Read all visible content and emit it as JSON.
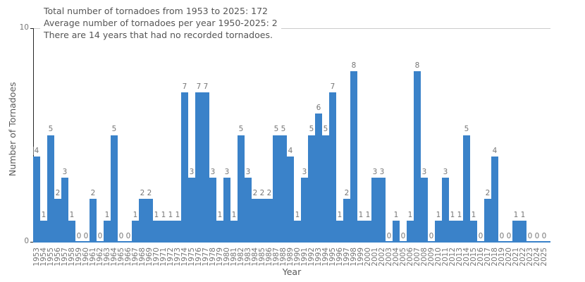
{
  "chart_data": {
    "type": "bar",
    "title_lines": [
      "Total number of tornadoes from 1953 to 2025: 172",
      "Average number of tornadoes per year 1950-2025: 2",
      "There are 14 years that had no recorded tornadoes."
    ],
    "xlabel": "Year",
    "ylabel": "Number of Tornadoes",
    "ylim": [
      0,
      10
    ],
    "yticks": [
      0,
      10
    ],
    "grid_top_line": true,
    "legend": "none",
    "bar_color": "#3a82c9",
    "axis_color": "#262626",
    "tick_label_color": "#777777",
    "title_color": "#555555",
    "years": [
      "1953",
      "1954",
      "1955",
      "1956",
      "1957",
      "1958",
      "1959",
      "1960",
      "1961",
      "1962",
      "1963",
      "1964",
      "1965",
      "1966",
      "1967",
      "1968",
      "1969",
      "1970",
      "1971",
      "1972",
      "1973",
      "1974",
      "1975",
      "1976",
      "1977",
      "1978",
      "1979",
      "1980",
      "1981",
      "1982",
      "1983",
      "1984",
      "1985",
      "1986",
      "1987",
      "1988",
      "1989",
      "1990",
      "1991",
      "1992",
      "1993",
      "1994",
      "1995",
      "1996",
      "1997",
      "1998",
      "1999",
      "2000",
      "2001",
      "2002",
      "2003",
      "2004",
      "2005",
      "2006",
      "2007",
      "2008",
      "2009",
      "2010",
      "2011",
      "2012",
      "2013",
      "2014",
      "2015",
      "2016",
      "2017",
      "2018",
      "2019",
      "2020",
      "2021",
      "2022",
      "2023",
      "2024",
      "2025"
    ],
    "values": [
      4,
      1,
      5,
      2,
      3,
      1,
      0,
      0,
      2,
      0,
      1,
      5,
      0,
      0,
      1,
      2,
      2,
      1,
      1,
      1,
      1,
      7,
      3,
      7,
      7,
      3,
      1,
      3,
      1,
      5,
      3,
      2,
      2,
      2,
      5,
      5,
      4,
      1,
      3,
      5,
      6,
      5,
      7,
      1,
      2,
      8,
      1,
      1,
      3,
      3,
      0,
      1,
      0,
      1,
      8,
      3,
      0,
      1,
      3,
      1,
      1,
      5,
      1,
      0,
      2,
      4,
      0,
      0,
      1,
      1,
      0,
      0,
      0
    ]
  }
}
